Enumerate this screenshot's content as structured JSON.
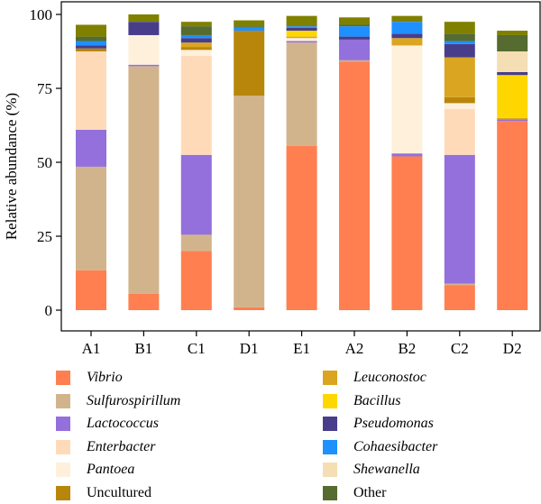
{
  "chart_data": {
    "type": "bar",
    "stacked": true,
    "title": "",
    "xlabel": "",
    "ylabel": "Relative abundance (%)",
    "ylim": [
      0,
      100
    ],
    "yticks": [
      0,
      25,
      50,
      75,
      100
    ],
    "categories": [
      "A1",
      "B1",
      "C1",
      "D1",
      "E1",
      "A2",
      "B2",
      "C2",
      "D2"
    ],
    "legend_position": "bottom",
    "series": [
      {
        "name": "Vibrio",
        "italic": true,
        "color": "#FF7F50",
        "values": [
          13.5,
          5.5,
          20.0,
          1.0,
          55.5,
          84.0,
          52.0,
          8.5,
          64.0
        ]
      },
      {
        "name": "Sulfurospirillum",
        "italic": true,
        "color": "#D2B48C",
        "values": [
          35.0,
          77.0,
          5.5,
          71.5,
          35.0,
          0.5,
          0.0,
          0.5,
          0.0
        ]
      },
      {
        "name": "Lactococcus",
        "italic": true,
        "color": "#9370DB",
        "values": [
          12.5,
          0.5,
          27.0,
          0.0,
          0.5,
          7.0,
          1.0,
          43.5,
          0.5
        ]
      },
      {
        "name": "Enterbacter",
        "italic": true,
        "color": "#FFDAB9",
        "values": [
          26.5,
          0.0,
          33.5,
          0.0,
          0.0,
          0.0,
          0.0,
          15.5,
          0.0
        ]
      },
      {
        "name": "Pantoea",
        "italic": true,
        "color": "#FFF0DC",
        "values": [
          0.0,
          10.0,
          2.0,
          0.0,
          1.0,
          0.0,
          36.5,
          2.0,
          0.0
        ]
      },
      {
        "name": "Uncultured",
        "italic": false,
        "color": "#B8860B",
        "values": [
          1.0,
          0.0,
          1.0,
          22.0,
          0.0,
          0.0,
          0.0,
          2.0,
          0.0
        ]
      },
      {
        "name": "Leuconostoc",
        "italic": true,
        "color": "#DAA520",
        "values": [
          0.0,
          0.0,
          1.5,
          0.0,
          0.5,
          0.0,
          2.5,
          13.5,
          0.5
        ]
      },
      {
        "name": "Bacillus",
        "italic": true,
        "color": "#FFD700",
        "values": [
          0.0,
          0.0,
          0.0,
          0.0,
          2.0,
          0.0,
          0.0,
          0.0,
          14.5
        ]
      },
      {
        "name": "Pseudomonas",
        "italic": true,
        "color": "#483D8B",
        "values": [
          1.0,
          4.5,
          1.5,
          0.0,
          1.0,
          1.0,
          1.5,
          4.5,
          1.0
        ]
      },
      {
        "name": "Cohaesibacter",
        "italic": true,
        "color": "#1E90FF",
        "values": [
          1.5,
          0.0,
          1.0,
          1.0,
          0.5,
          3.5,
          4.0,
          1.0,
          0.0
        ]
      },
      {
        "name": "Shewanella",
        "italic": true,
        "color": "#F5DEB3",
        "values": [
          0.0,
          0.0,
          0.0,
          0.0,
          0.0,
          0.0,
          0.0,
          0.0,
          7.0
        ]
      },
      {
        "name": "Other",
        "italic": false,
        "color": "#556B2F",
        "values": [
          1.5,
          0.0,
          3.0,
          0.5,
          0.0,
          0.5,
          0.0,
          2.5,
          5.5
        ]
      },
      {
        "name": "",
        "italic": false,
        "color": "#808000",
        "values": [
          4.0,
          2.5,
          1.5,
          2.0,
          3.5,
          2.5,
          2.0,
          4.0,
          1.5
        ]
      }
    ],
    "minor_colors": [
      "#2E8B57",
      "#006400",
      "#DB7093",
      "#87CEEB",
      "#8A2BE2",
      "#32CD32",
      "#FF69B4"
    ]
  }
}
